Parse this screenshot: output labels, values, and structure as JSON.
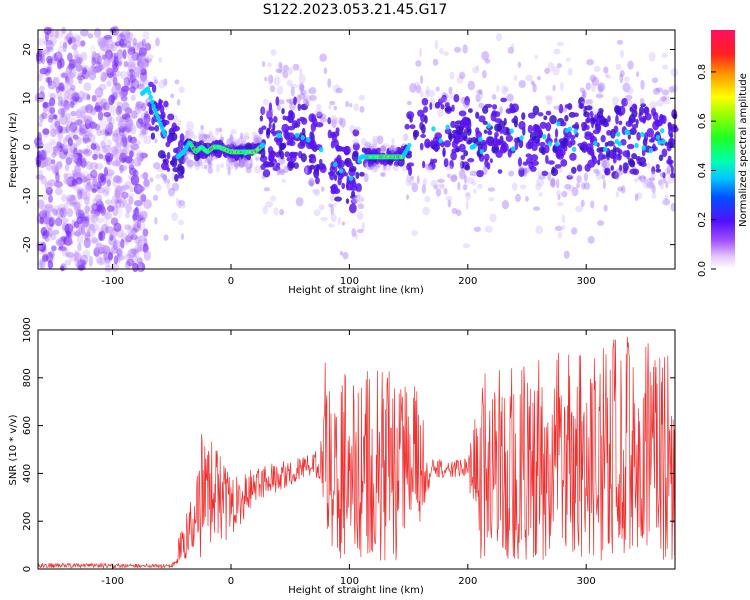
{
  "title": "S122.2023.053.21.45.G17",
  "chart_data": [
    {
      "type": "heatmap",
      "xlabel": "Height of straight line (km)",
      "ylabel": "Frequency (Hz)",
      "xlim": [
        -163,
        375
      ],
      "ylim": [
        -25,
        24
      ],
      "xticks": [
        -100,
        0,
        100,
        200,
        300
      ],
      "yticks": [
        -20,
        -10,
        0,
        10,
        20
      ],
      "grid": false,
      "colorbar": {
        "label": "Normalized spectral amplitude",
        "range": [
          0.0,
          0.97
        ],
        "ticks": [
          0.0,
          0.2,
          0.4,
          0.6,
          0.8
        ],
        "colormap": "rainbow"
      },
      "ridge": {
        "x": [
          -75,
          -70,
          -65,
          -55,
          -45,
          -40,
          -35,
          -30,
          -25,
          -20,
          -15,
          -10,
          0,
          10,
          20,
          25,
          30,
          35,
          50,
          70,
          90,
          100,
          105,
          110,
          120,
          130,
          140,
          145,
          150,
          155,
          160,
          170
        ],
        "y": [
          11,
          12,
          8,
          2,
          -2,
          -1,
          1,
          -1,
          0,
          -1,
          0,
          0,
          -1,
          -1,
          -1,
          0,
          1,
          2,
          3,
          1,
          -4,
          -7,
          -5,
          -2,
          -2,
          -2,
          -2,
          -2,
          0,
          3,
          4,
          2
        ]
      }
    },
    {
      "type": "line",
      "xlabel": "Height of straight line (km)",
      "ylabel": "SNR (10 * v/v)",
      "xlim": [
        -163,
        375
      ],
      "ylim": [
        0,
        1000
      ],
      "xticks": [
        -100,
        0,
        100,
        200,
        300
      ],
      "yticks": [
        0,
        200,
        400,
        600,
        800,
        1000
      ],
      "grid": false,
      "color": "#f03030",
      "x": [
        -163,
        -120,
        -80,
        -50,
        -45,
        -40,
        -35,
        -30,
        -25,
        -20,
        -15,
        -10,
        -5,
        0,
        10,
        20,
        30,
        40,
        50,
        60,
        70,
        75,
        80,
        90,
        100,
        110,
        120,
        130,
        140,
        150,
        160,
        165,
        170,
        180,
        190,
        200,
        210,
        220,
        230,
        240,
        250,
        260,
        270,
        280,
        290,
        300,
        310,
        320,
        330,
        340,
        350,
        360,
        370,
        375
      ],
      "y": [
        15,
        15,
        12,
        10,
        40,
        160,
        120,
        220,
        180,
        300,
        240,
        280,
        250,
        240,
        300,
        340,
        380,
        390,
        400,
        420,
        440,
        400,
        350,
        360,
        340,
        380,
        350,
        360,
        340,
        350,
        360,
        420,
        410,
        420,
        430,
        400,
        380,
        400,
        420,
        380,
        400,
        420,
        380,
        400,
        380,
        420,
        400,
        380,
        410,
        390,
        400,
        420,
        400,
        410
      ],
      "envelope": {
        "x": [
          -163,
          -50,
          -45,
          -40,
          -30,
          -25,
          -20,
          -10,
          0,
          20,
          40,
          60,
          75,
          80,
          100,
          120,
          140,
          160,
          165,
          170,
          200,
          210,
          250,
          300,
          320,
          350,
          375
        ],
        "lo": [
          5,
          5,
          20,
          20,
          60,
          40,
          100,
          120,
          120,
          280,
          320,
          380,
          380,
          50,
          40,
          30,
          30,
          60,
          300,
          380,
          380,
          40,
          30,
          30,
          20,
          30,
          40
        ],
        "hi": [
          25,
          20,
          120,
          280,
          300,
          620,
          600,
          480,
          400,
          420,
          450,
          470,
          500,
          900,
          860,
          860,
          830,
          750,
          520,
          460,
          460,
          820,
          920,
          900,
          1000,
          950,
          900
        ]
      }
    }
  ]
}
